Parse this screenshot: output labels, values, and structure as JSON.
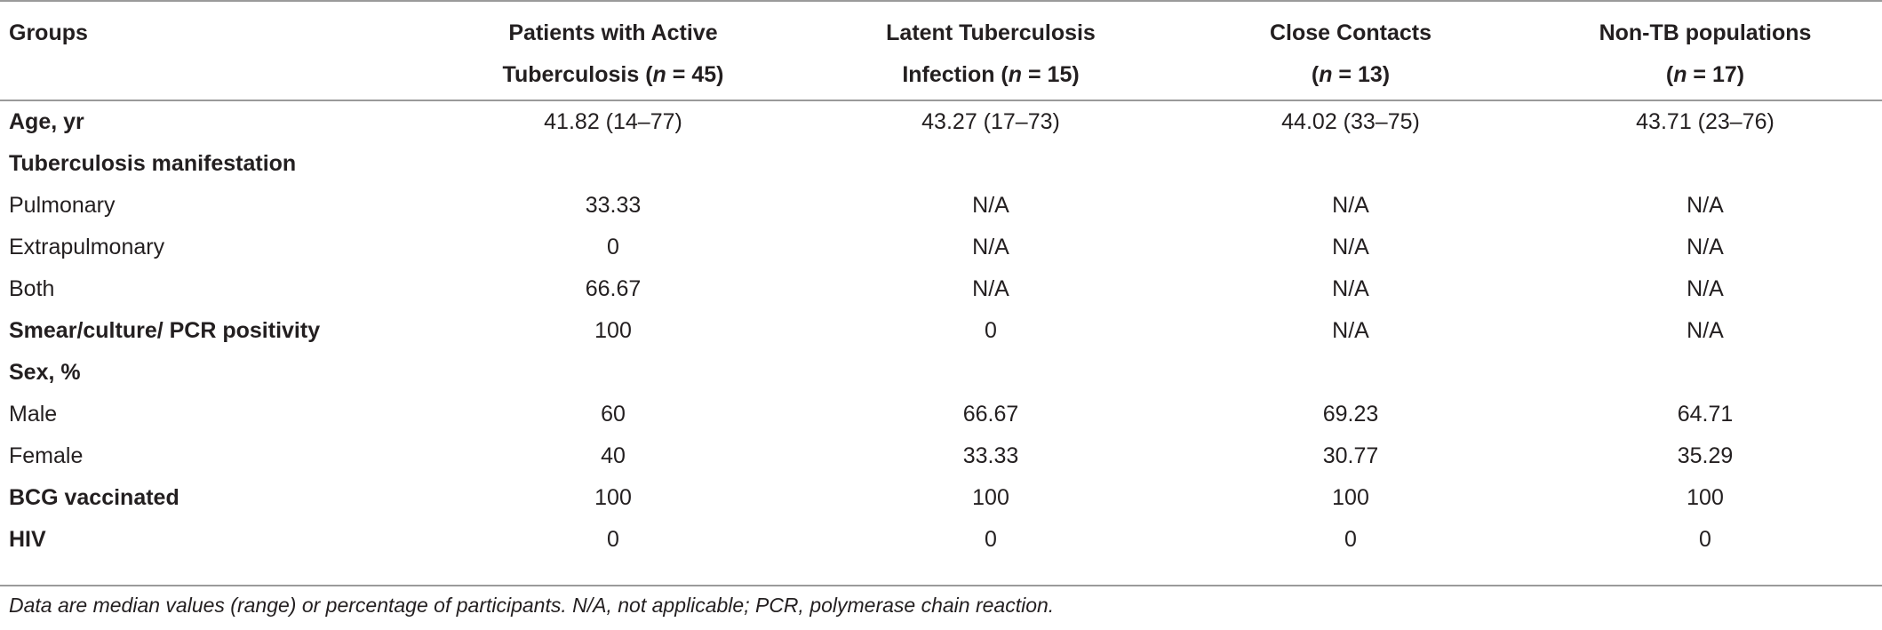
{
  "table": {
    "headers": [
      {
        "line1": "Groups",
        "line2": "",
        "n_prefix": "",
        "n_value": ""
      },
      {
        "line1": "Patients with Active",
        "line2": "Tuberculosis (",
        "n_prefix": "n",
        "n_value": " = 45)"
      },
      {
        "line1": "Latent Tuberculosis",
        "line2": "Infection (",
        "n_prefix": "n",
        "n_value": " = 15)"
      },
      {
        "line1": "Close Contacts",
        "line2": "(",
        "n_prefix": "n",
        "n_value": " = 13)"
      },
      {
        "line1": "Non-TB populations",
        "line2": "(",
        "n_prefix": "n",
        "n_value": " = 17)"
      }
    ],
    "rows": [
      {
        "label": "Age, yr",
        "bold": true,
        "values": [
          "41.82 (14–77)",
          "43.27 (17–73)",
          "44.02 (33–75)",
          "43.71 (23–76)"
        ]
      },
      {
        "label": "Tuberculosis manifestation",
        "bold": true,
        "values": [
          "",
          "",
          "",
          ""
        ]
      },
      {
        "label": "Pulmonary",
        "bold": false,
        "values": [
          "33.33",
          "N/A",
          "N/A",
          "N/A"
        ]
      },
      {
        "label": "Extrapulmonary",
        "bold": false,
        "values": [
          "0",
          "N/A",
          "N/A",
          "N/A"
        ]
      },
      {
        "label": "Both",
        "bold": false,
        "values": [
          "66.67",
          "N/A",
          "N/A",
          "N/A"
        ]
      },
      {
        "label": "Smear/culture/ PCR positivity",
        "bold": true,
        "values": [
          "100",
          "0",
          "N/A",
          "N/A"
        ]
      },
      {
        "label": "Sex, %",
        "bold": true,
        "values": [
          "",
          "",
          "",
          ""
        ]
      },
      {
        "label": "Male",
        "bold": false,
        "values": [
          "60",
          "66.67",
          "69.23",
          "64.71"
        ]
      },
      {
        "label": "Female",
        "bold": false,
        "values": [
          "40",
          "33.33",
          "30.77",
          "35.29"
        ]
      },
      {
        "label": "BCG vaccinated",
        "bold": true,
        "values": [
          "100",
          "100",
          "100",
          "100"
        ]
      },
      {
        "label": "HIV",
        "bold": true,
        "values": [
          "0",
          "0",
          "0",
          "0"
        ]
      }
    ]
  },
  "footnote": "Data are median values (range) or percentage of participants. N/A, not applicable; PCR, polymerase chain reaction."
}
